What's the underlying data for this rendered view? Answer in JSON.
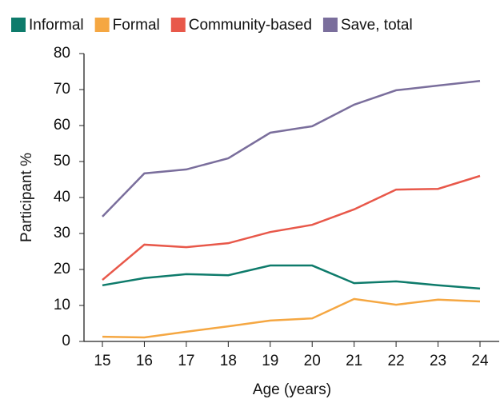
{
  "chart_data": {
    "type": "line",
    "x": [
      15,
      16,
      17,
      18,
      19,
      20,
      21,
      22,
      23,
      24
    ],
    "xlim": [
      15,
      24
    ],
    "xticks": [
      15,
      16,
      17,
      18,
      19,
      20,
      21,
      22,
      23,
      24
    ],
    "ylim": [
      0,
      80
    ],
    "yticks": [
      0,
      10,
      20,
      30,
      40,
      50,
      60,
      70,
      80
    ],
    "xlabel": "Age (years)",
    "ylabel": "Participant %",
    "legend": "top",
    "series": [
      {
        "name": "Informal",
        "color": "#0e7b6b",
        "values": [
          15.6,
          17.6,
          18.7,
          18.4,
          21.1,
          21.1,
          16.2,
          16.7,
          15.6,
          14.7
        ]
      },
      {
        "name": "Formal",
        "color": "#f5a742",
        "values": [
          1.3,
          1.1,
          2.7,
          4.2,
          5.8,
          6.4,
          11.8,
          10.2,
          11.6,
          11.1
        ]
      },
      {
        "name": "Community-based",
        "color": "#e8584a",
        "values": [
          17.1,
          26.9,
          26.2,
          27.3,
          30.4,
          32.4,
          36.7,
          42.2,
          42.4,
          46.0
        ]
      },
      {
        "name": "Save, total",
        "color": "#7a6e9c",
        "values": [
          34.7,
          46.7,
          47.8,
          50.9,
          58.0,
          59.8,
          65.8,
          69.8,
          71.1,
          72.4
        ]
      }
    ]
  }
}
